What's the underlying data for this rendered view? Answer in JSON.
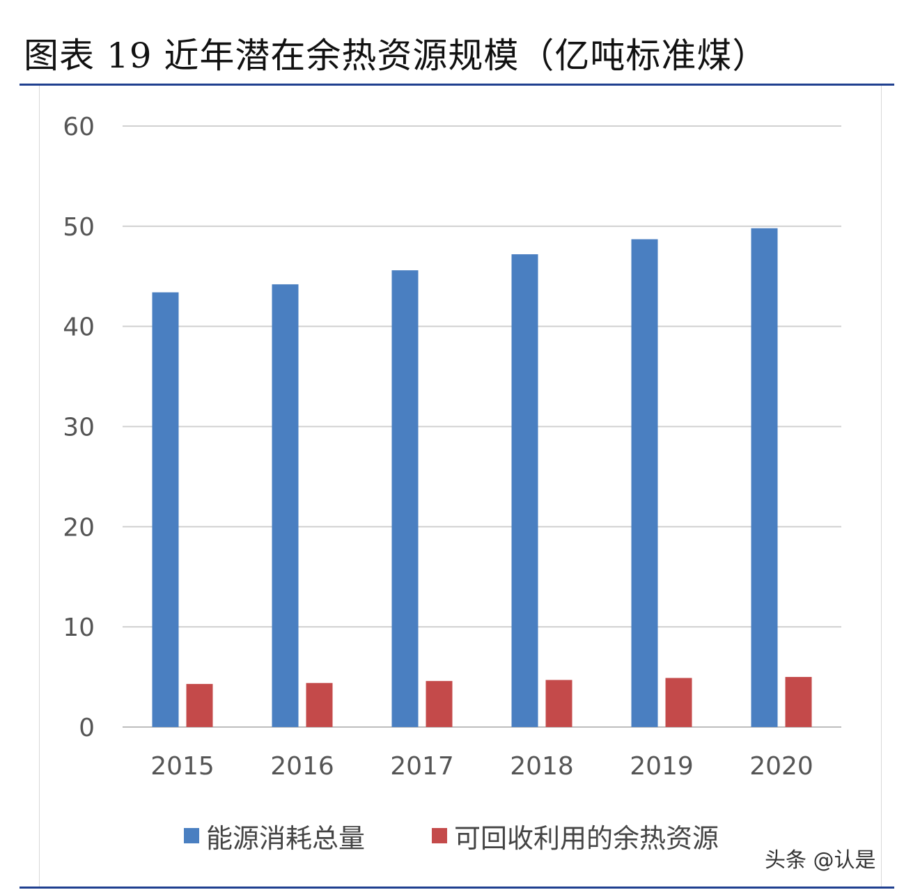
{
  "header": {
    "title": "图表 19 近年潜在余热资源规模（亿吨标准煤）"
  },
  "watermark": "头条 @认是",
  "colors": {
    "series_1": "#4a7fc1",
    "series_2": "#c44a4a",
    "rule": "#1f3f8f",
    "grid": "#d0d0d0",
    "tick": "#555555"
  },
  "chart_data": {
    "type": "bar",
    "categories": [
      "2015",
      "2016",
      "2017",
      "2018",
      "2019",
      "2020"
    ],
    "series": [
      {
        "name": "能源消耗总量",
        "values": [
          43.4,
          44.2,
          45.6,
          47.2,
          48.7,
          49.8
        ]
      },
      {
        "name": "可回收利用的余热资源",
        "values": [
          4.3,
          4.4,
          4.6,
          4.7,
          4.9,
          5.0
        ]
      }
    ],
    "yticks": [
      0,
      10,
      20,
      30,
      40,
      50,
      60
    ],
    "ylim": [
      0,
      60
    ],
    "grid": true,
    "legend": "bottom",
    "title": "图表 19 近年潜在余热资源规模（亿吨标准煤）",
    "xlabel": "",
    "ylabel": ""
  }
}
